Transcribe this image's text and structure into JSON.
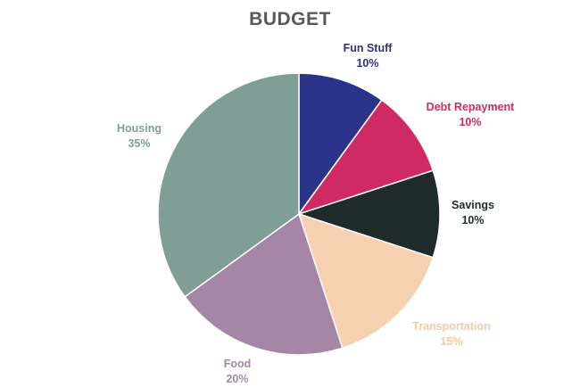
{
  "chart_data": {
    "type": "pie",
    "title": "BUDGET",
    "slices": [
      {
        "label": "Fun Stuff",
        "value": 10,
        "value_label": "10%",
        "color": "#2b3488"
      },
      {
        "label": "Debt Repayment",
        "value": 10,
        "value_label": "10%",
        "color": "#cf2a64"
      },
      {
        "label": "Savings",
        "value": 10,
        "value_label": "10%",
        "color": "#1f2b2b"
      },
      {
        "label": "Transportation",
        "value": 15,
        "value_label": "15%",
        "color": "#f5d0b1"
      },
      {
        "label": "Food",
        "value": 20,
        "value_label": "20%",
        "color": "#a586a6"
      },
      {
        "label": "Housing",
        "value": 35,
        "value_label": "35%",
        "color": "#7f9f96"
      }
    ],
    "start_angle": "12 o'clock",
    "direction": "clockwise",
    "legend": "none"
  }
}
